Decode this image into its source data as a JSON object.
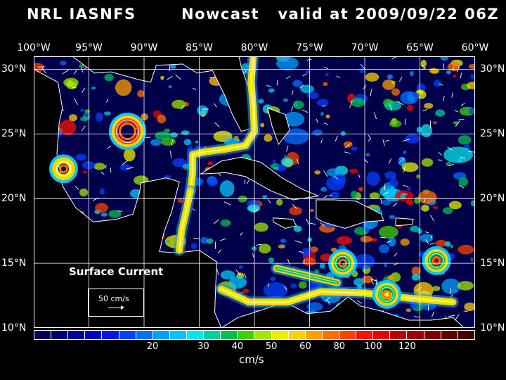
{
  "title": {
    "left": "NRL IASNFS",
    "right": "Nowcast   valid at 2009/09/22 06Z"
  },
  "map": {
    "lon_labels": [
      "100°W",
      "95°W",
      "90°W",
      "85°W",
      "80°W",
      "75°W",
      "70°W",
      "65°W",
      "60°W"
    ],
    "lat_labels": [
      "30°N",
      "25°N",
      "20°N",
      "15°N",
      "10°N"
    ],
    "lon_range": [
      -100,
      -60
    ],
    "lat_range": [
      10,
      31
    ],
    "grid": true,
    "ocean_color": "#00004a",
    "land_color": "#000000",
    "coast_color": "#ffffff",
    "grid_color": "#ffffff"
  },
  "overlay": {
    "field_label": "Surface Current",
    "reference_vector_label": "50 cm/s",
    "reference_vector_speed": 50
  },
  "colorbar": {
    "unit": "cm/s",
    "tick_labels": [
      "20",
      "30",
      "40",
      "50",
      "60",
      "80",
      "100",
      "120"
    ],
    "colors": [
      "#000050",
      "#000070",
      "#00009a",
      "#0000c8",
      "#0018e8",
      "#0040ff",
      "#0070ff",
      "#00a0ff",
      "#00c8ff",
      "#00e8f0",
      "#00d0a0",
      "#00c050",
      "#40d000",
      "#a0e800",
      "#e8f000",
      "#ffd000",
      "#ffa000",
      "#ff7000",
      "#ff4000",
      "#ff1000",
      "#e80000",
      "#c00000",
      "#a00000",
      "#800000",
      "#600000",
      "#400000"
    ]
  },
  "features": {
    "eddies": [
      {
        "lon": -91.5,
        "lat": 25.2,
        "speed": 100
      },
      {
        "lon": -97.3,
        "lat": 22.3,
        "speed": 80
      },
      {
        "lon": -72.0,
        "lat": 15.0,
        "speed": 60
      },
      {
        "lon": -63.5,
        "lat": 15.2,
        "speed": 60
      },
      {
        "lon": -68.0,
        "lat": 12.6,
        "speed": 60
      }
    ],
    "currents": [
      {
        "name": "loop-current",
        "speed": 80,
        "path": [
          [
            -85.8,
            20.6
          ],
          [
            -85.6,
            22.0
          ],
          [
            -85.6,
            23.4
          ],
          [
            -84.6,
            23.6
          ],
          [
            -82.8,
            23.8
          ],
          [
            -80.8,
            24.1
          ],
          [
            -80.0,
            25.2
          ],
          [
            -80.1,
            27.0
          ],
          [
            -80.3,
            29.0
          ],
          [
            -80.1,
            31.0
          ]
        ]
      },
      {
        "name": "yucatan-current",
        "speed": 80,
        "path": [
          [
            -86.8,
            16.0
          ],
          [
            -86.6,
            17.5
          ],
          [
            -86.2,
            19.0
          ],
          [
            -85.8,
            20.6
          ]
        ]
      },
      {
        "name": "caribbean-current",
        "speed": 80,
        "path": [
          [
            -62.0,
            12.0
          ],
          [
            -66.0,
            12.3
          ],
          [
            -70.0,
            12.7
          ],
          [
            -74.0,
            12.8
          ],
          [
            -77.0,
            12.0
          ],
          [
            -80.5,
            12.0
          ],
          [
            -83.0,
            13.0
          ]
        ]
      },
      {
        "name": "south-caribbean-jet",
        "speed": 60,
        "path": [
          [
            -78.0,
            14.6
          ],
          [
            -75.0,
            14.0
          ],
          [
            -72.5,
            13.5
          ]
        ]
      }
    ]
  }
}
